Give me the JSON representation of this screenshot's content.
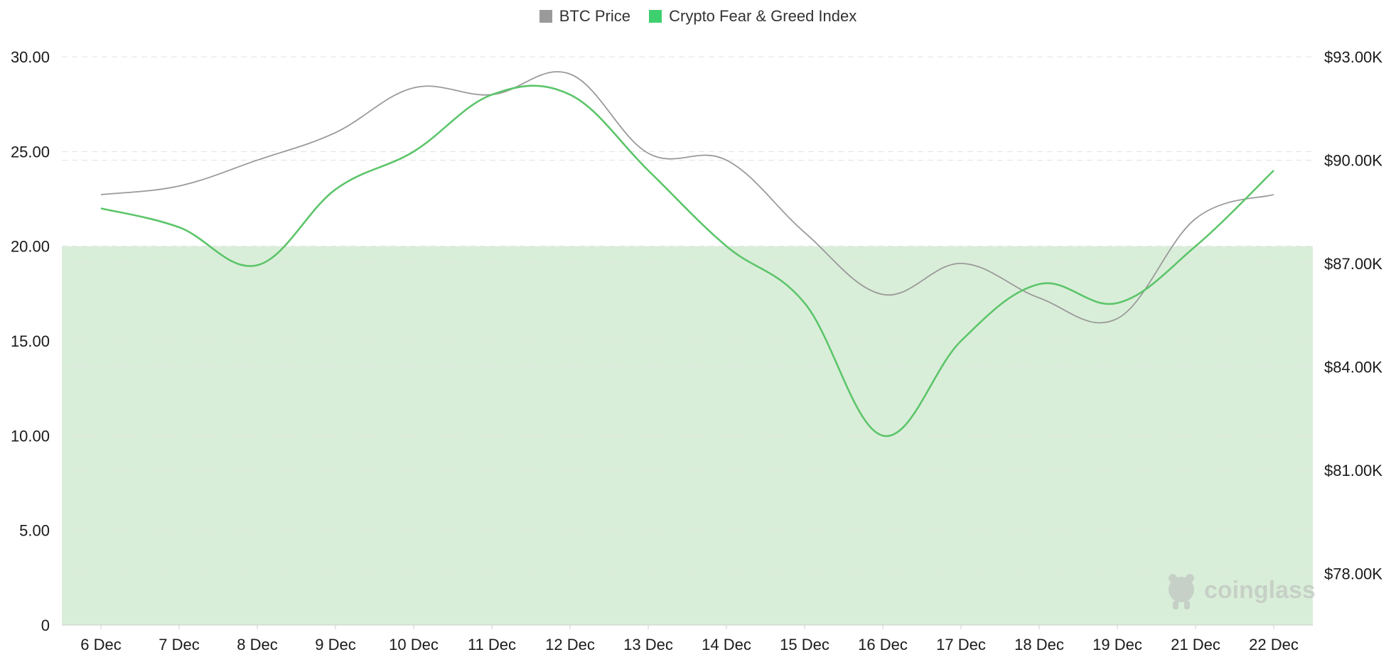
{
  "chart_data": {
    "type": "line",
    "categories": [
      "6 Dec",
      "7 Dec",
      "8 Dec",
      "9 Dec",
      "10 Dec",
      "11 Dec",
      "12 Dec",
      "13 Dec",
      "14 Dec",
      "15 Dec",
      "16 Dec",
      "17 Dec",
      "18 Dec",
      "19 Dec",
      "21 Dec",
      "22 Dec"
    ],
    "y_left": {
      "min": 0,
      "max": 30,
      "ticks": [
        "30.00",
        "25.00",
        "20.00",
        "15.00",
        "10.00",
        "5.00",
        "0"
      ]
    },
    "y_right": {
      "min": 76500,
      "max": 93000,
      "ticks": [
        "$93.00K",
        "$90.00K",
        "$87.00K",
        "$84.00K",
        "$81.00K",
        "$78.00K"
      ],
      "tick_values": [
        93000,
        90000,
        87000,
        84000,
        81000,
        78000
      ]
    },
    "shaded_band": {
      "from": 0,
      "to": 20,
      "color": "#d9eed9"
    },
    "grid": true,
    "legend_position": "top-center",
    "series": [
      {
        "name": "BTC Price",
        "axis": "right",
        "color": "#9a9a9a",
        "values": [
          89000,
          89250,
          90000,
          90800,
          92100,
          91900,
          92500,
          90200,
          90000,
          87900,
          86100,
          87000,
          86000,
          85400,
          88300,
          89000
        ]
      },
      {
        "name": "Crypto Fear & Greed Index",
        "axis": "left",
        "color": "#5cc56a",
        "values": [
          22,
          21,
          19,
          23,
          25,
          28,
          28,
          24,
          20,
          17,
          10,
          15,
          18,
          17,
          20,
          24
        ]
      }
    ]
  },
  "legend": {
    "items": [
      {
        "label": "BTC Price",
        "color": "#9a9a9a"
      },
      {
        "label": "Crypto Fear & Greed Index",
        "color": "#3ecf6e"
      }
    ]
  },
  "watermark": {
    "text": "coinglass"
  }
}
